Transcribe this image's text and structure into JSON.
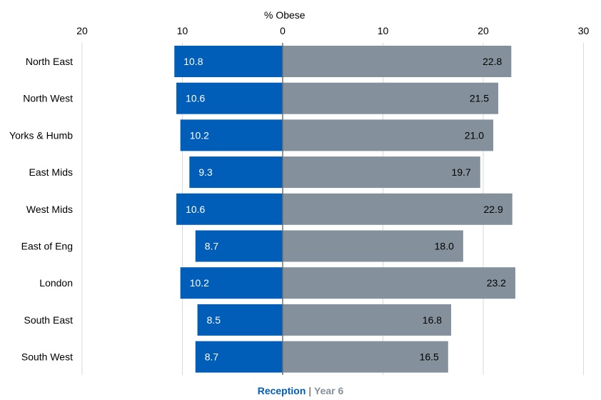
{
  "chart_data": {
    "type": "bar",
    "orientation": "horizontal-butterfly",
    "xlabel": "% Obese",
    "tick_labels": [
      "20",
      "10",
      "0",
      "10",
      "20",
      "30"
    ],
    "xlim": [
      -20,
      30
    ],
    "grid": true,
    "categories": [
      "North East",
      "North West",
      "Yorks & Humb",
      "East Mids",
      "West Mids",
      "East of Eng",
      "London",
      "South East",
      "South West"
    ],
    "series": [
      {
        "name": "Reception",
        "direction": "left",
        "color": "#005EB8",
        "values": [
          10.8,
          10.6,
          10.2,
          9.3,
          10.6,
          8.7,
          10.2,
          8.5,
          8.7
        ],
        "labels": [
          "10.8",
          "10.6",
          "10.2",
          "9.3",
          "10.6",
          "8.7",
          "10.2",
          "8.5",
          "8.7"
        ]
      },
      {
        "name": "Year 6",
        "direction": "right",
        "color": "#84919C",
        "values": [
          22.8,
          21.5,
          21.0,
          19.7,
          22.9,
          18.0,
          23.2,
          16.8,
          16.5
        ],
        "labels": [
          "22.8",
          "21.5",
          "21.0",
          "19.7",
          "22.9",
          "18.0",
          "23.2",
          "16.8",
          "16.5"
        ]
      }
    ],
    "legend": {
      "position": "bottom",
      "separator": "|"
    }
  }
}
